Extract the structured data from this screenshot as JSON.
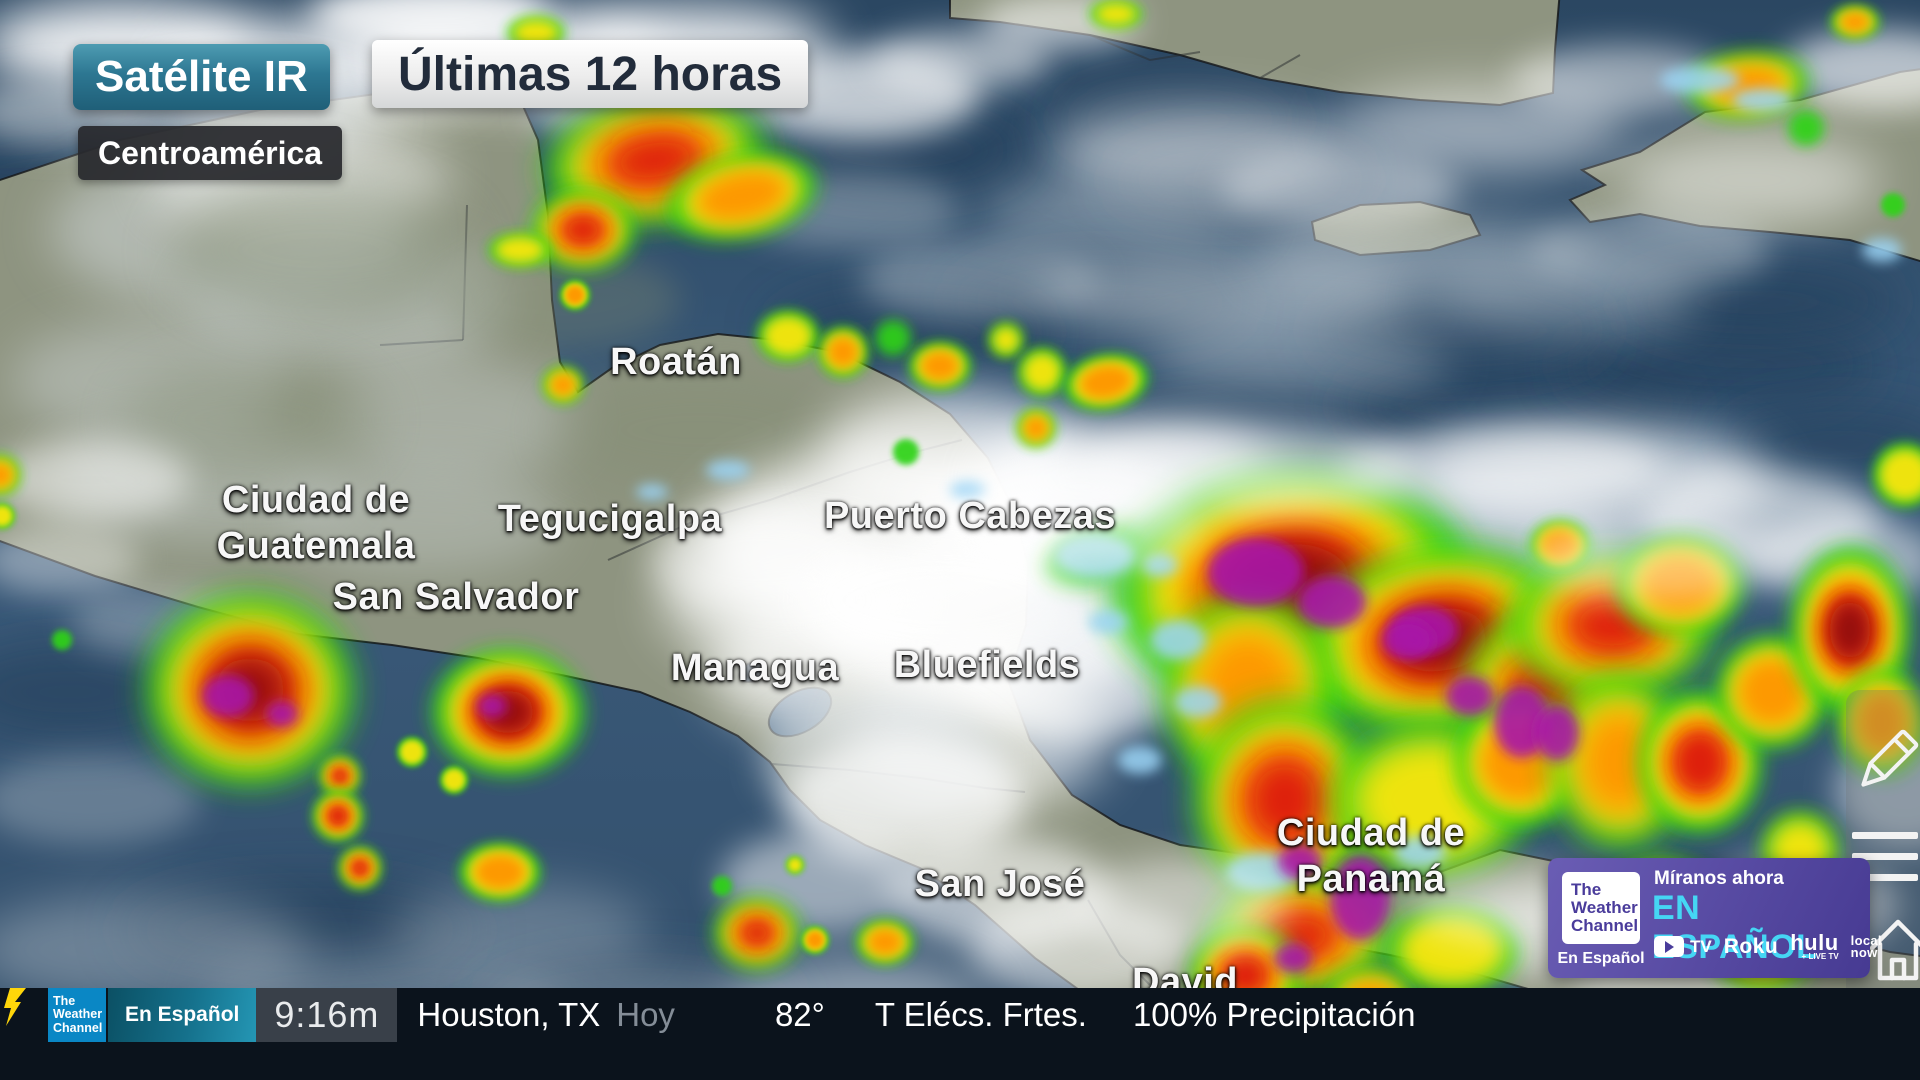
{
  "header": {
    "badge": "Satélite IR",
    "title": "Últimas 12 horas",
    "region": "Centroamérica"
  },
  "map": {
    "labels": [
      {
        "id": "roatan",
        "name": "Roatán"
      },
      {
        "id": "ciudad-de-guatemala",
        "name": "Ciudad de\nGuatemala"
      },
      {
        "id": "tegucigalpa",
        "name": "Tegucigalpa"
      },
      {
        "id": "san-salvador",
        "name": "San Salvador"
      },
      {
        "id": "puerto-cabezas",
        "name": "Puerto Cabezas"
      },
      {
        "id": "managua",
        "name": "Managua"
      },
      {
        "id": "bluefields",
        "name": "Bluefields"
      },
      {
        "id": "san-jose",
        "name": "San José"
      },
      {
        "id": "ciudad-de-panama",
        "name": "Ciudad de\nPanamá"
      },
      {
        "id": "david",
        "name": "David"
      }
    ]
  },
  "promo": {
    "kicker": "Míranos ahora",
    "headline": "EN ESPAÑOL",
    "logo": "The\nWeather\nChannel",
    "logo_sub": "En Español",
    "platforms": {
      "youtube_tv": "TV",
      "roku": "Roku",
      "hulu": "hulu",
      "hulu_sub": "+ LIVE TV",
      "local_now_top": "local",
      "local_now_bottom": "now"
    }
  },
  "ticker": {
    "logo": "The\nWeather\nChannel",
    "channel": "En Español",
    "time": "9:16m",
    "location": "Houston, TX",
    "day": "Hoy",
    "temp": "82°",
    "condition": "T Elécs. Frtes.",
    "precip": "100% Precipitación"
  },
  "colors": {
    "accent_teal": "#2d7792",
    "accent_cyan": "#45d6f4",
    "promo_purple": "#5a4da5",
    "logo_blue": "#0a87c5",
    "bolt_yellow": "#ffd60a",
    "storm_scale": [
      "#2fd318",
      "#ffe60a",
      "#ff9300",
      "#dc1410",
      "#8f0b0b",
      "#a816a8"
    ]
  }
}
